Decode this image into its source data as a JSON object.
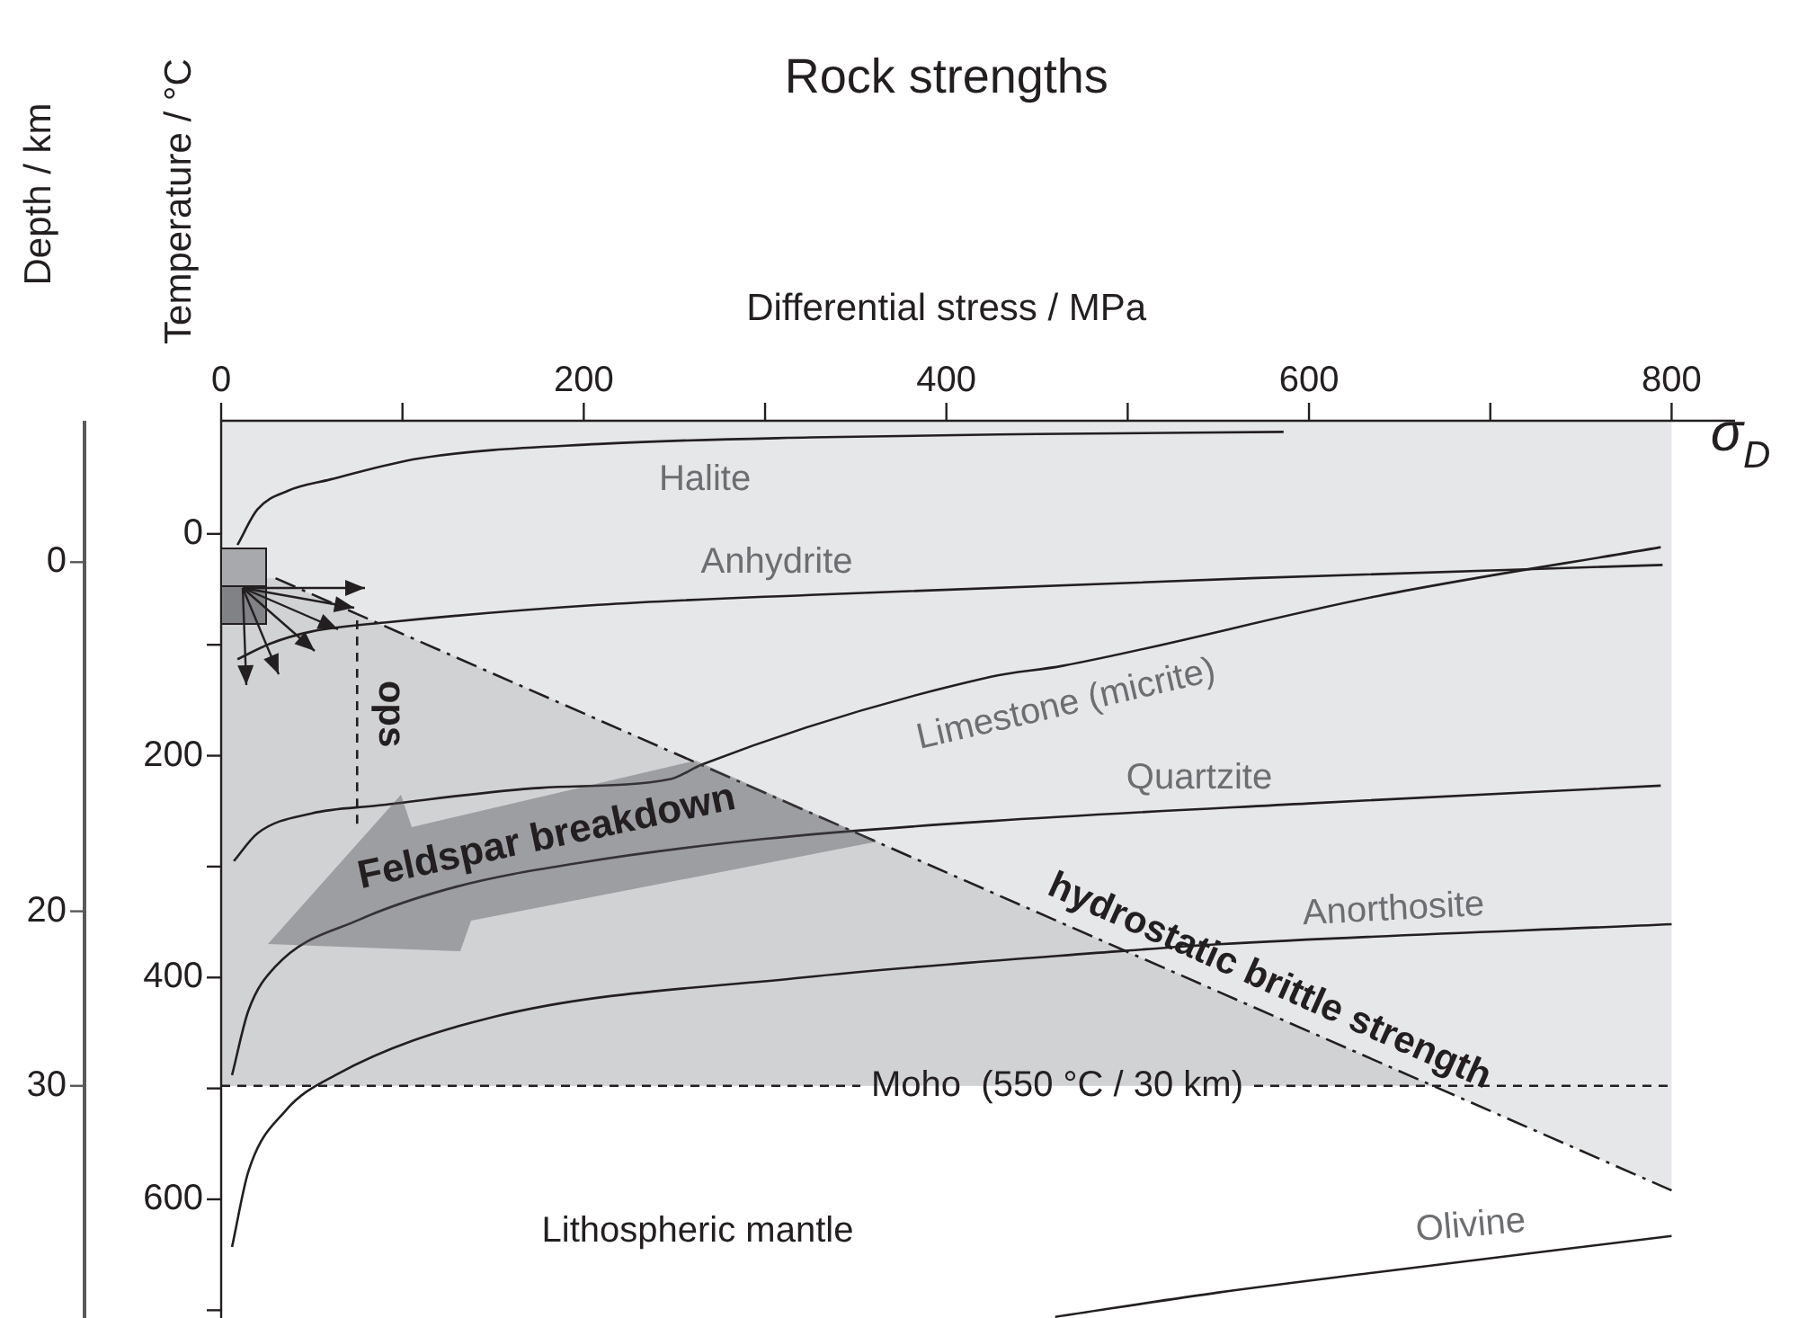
{
  "chart_data": {
    "type": "line",
    "title": "Rock strengths",
    "xlabel": "Differential stress / MPa",
    "ylabel": "Temperature / °C",
    "y2label": "Depth / km",
    "bands": [
      {
        "axis": "x",
        "from": 0,
        "to": 800,
        "color": "#e6e7e8"
      }
    ],
    "annotations": [
      {
        "text": "Feldspar breakdown",
        "x": 30,
        "y": 390
      },
      "Lithospheric mantle",
      "σ$_{D}$"
    ],
    "series": [
      {
        "name": "Halite",
        "color": "#231f20",
        "x": [
          9,
          20,
          37,
          60,
          109,
          208,
          325,
          450,
          586
        ],
        "values": [
          10,
          -22,
          -39,
          -49,
          -68,
          -81,
          -87,
          -90,
          -92
        ]
      },
      {
        "name": "Anhydrite",
        "color": "#231f20",
        "x": [
          9,
          27,
          50,
          90,
          208,
          325,
          568,
          795
        ],
        "values": [
          113,
          99,
          88,
          80,
          64,
          55,
          40,
          28
        ]
      },
      {
        "name": "Limestone (micrite)",
        "color": "#231f20",
        "x": [
          7,
          20,
          50,
          86,
          176,
          248,
          265,
          424,
          464,
          638,
          794
        ],
        "values": [
          295,
          270,
          252,
          245,
          229,
          221,
          208,
          129,
          119,
          56,
          12
        ]
      },
      {
        "name": "Quartzite",
        "color": "#231f20",
        "x": [
          6,
          15,
          30,
          76,
          130,
          196,
          300,
          424,
          600,
          794
        ],
        "values": [
          488,
          430,
          390,
          348,
          318,
          297,
          275,
          259,
          243,
          227
        ]
      },
      {
        "name": "Anorthosite",
        "color": "#231f20",
        "x": [
          6,
          15,
          35,
          63,
          149,
          321,
          498,
          550,
          800
        ],
        "values": [
          643,
          575,
          521,
          488,
          436,
          400,
          376,
          370,
          352
        ]
      },
      {
        "name": "Olivine",
        "color": "#231f20",
        "x": [
          460,
          550,
          636,
          800
        ],
        "values": [
          706,
          684,
          666,
          633
        ]
      },
      {
        "name": "hydrostatic brittle strength",
        "color": "#231f20",
        "line_style": "dashdot",
        "x": [
          30,
          800
        ],
        "values": [
          40,
          592
        ]
      },
      {
        "name": "ops",
        "color": "#231f20",
        "line_style": "dashed",
        "x": [
          75,
          75
        ],
        "values": [
          78,
          264
        ]
      }
    ],
    "xlim": [
      0,
      835
    ],
    "xticks": [
      0,
      {
        "value": 100,
        "label": null
      },
      200,
      {
        "value": 300,
        "label": null
      },
      400,
      {
        "value": 500,
        "label": null
      },
      600,
      {
        "value": 700,
        "label": null
      },
      800
    ],
    "ylim": [
      707,
      -102
    ],
    "yticks": [
      0,
      {
        "value": 100,
        "label": null
      },
      200,
      {
        "value": 300,
        "label": null
      },
      400,
      {
        "value": 500,
        "label": null
      },
      600,
      {
        "value": 700,
        "label": null
      }
    ],
    "y2lim": [
      43.3,
      -8.1
    ],
    "y2ticks": [
      0,
      20,
      30
    ],
    "ref_lines": [
      {
        "axis": "y2",
        "value": 30,
        "label": "Moho  (550 °C / 30 km)",
        "line_style": "dashed"
      }
    ],
    "legend": false,
    "grid": false,
    "marker": "none"
  }
}
